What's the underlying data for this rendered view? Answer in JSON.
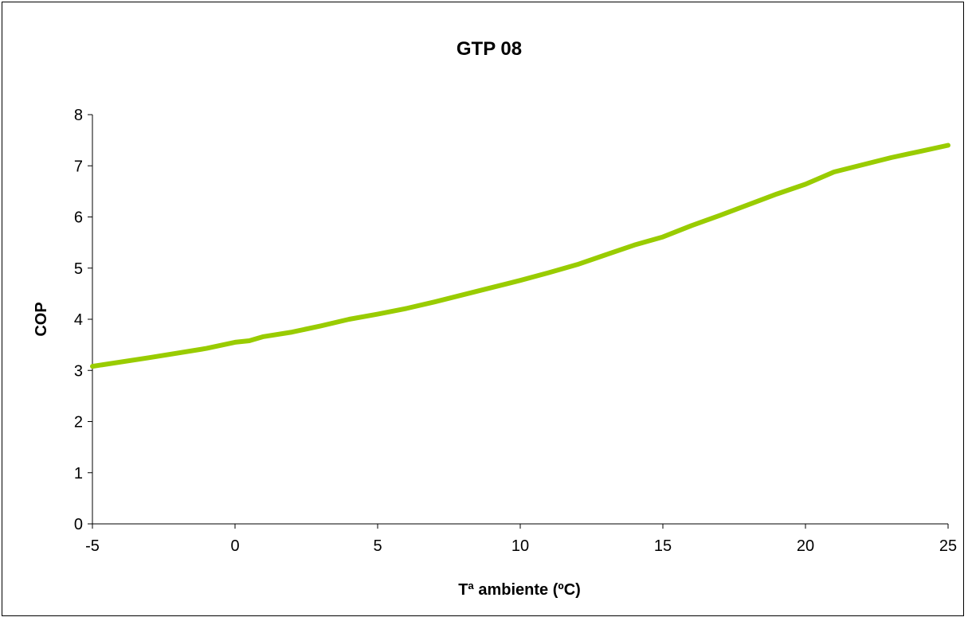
{
  "chart_data": {
    "type": "line",
    "title": "GTP 08",
    "xlabel": "Tª ambiente (ºC)",
    "ylabel": "COP",
    "xlim": [
      -5,
      25
    ],
    "ylim": [
      0,
      8
    ],
    "x_ticks": [
      "-5",
      "0",
      "5",
      "10",
      "15",
      "20",
      "25"
    ],
    "y_ticks": [
      "0",
      "1",
      "2",
      "3",
      "4",
      "5",
      "6",
      "7",
      "8"
    ],
    "grid": false,
    "legend": "none",
    "series": [
      {
        "color": "#99cc00",
        "x": [
          -5,
          -3,
          -1,
          0,
          0.5,
          1,
          2,
          3,
          4,
          5,
          6,
          7,
          8,
          9,
          10,
          11,
          12,
          13,
          14,
          15,
          16,
          17,
          18,
          19,
          20,
          21,
          22,
          23,
          24,
          25
        ],
        "y": [
          3.08,
          3.25,
          3.43,
          3.55,
          3.58,
          3.66,
          3.75,
          3.87,
          4.0,
          4.1,
          4.21,
          4.34,
          4.48,
          4.62,
          4.76,
          4.91,
          5.07,
          5.26,
          5.45,
          5.61,
          5.83,
          6.03,
          6.24,
          6.45,
          6.64,
          6.88,
          7.02,
          7.16,
          7.28,
          7.4
        ]
      }
    ]
  }
}
